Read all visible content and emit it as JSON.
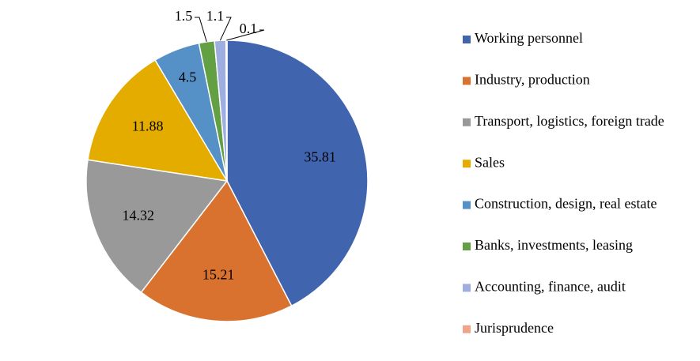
{
  "chart_data": {
    "type": "pie",
    "categories": [
      "Working personnel",
      "Industry, production",
      "Transport, logistics, foreign trade",
      "Sales",
      "Construction, design, real estate",
      "Banks, investments, leasing",
      "Accounting, finance, audit",
      "Jurisprudence"
    ],
    "values": [
      35.81,
      15.21,
      14.32,
      11.88,
      4.5,
      1.5,
      1.1,
      0.1
    ],
    "colors": [
      "#4065ae",
      "#d9722e",
      "#999999",
      "#e5ac00",
      "#5590c6",
      "#63a043",
      "#9eaee0",
      "#f0a58a"
    ],
    "legend": "right"
  }
}
